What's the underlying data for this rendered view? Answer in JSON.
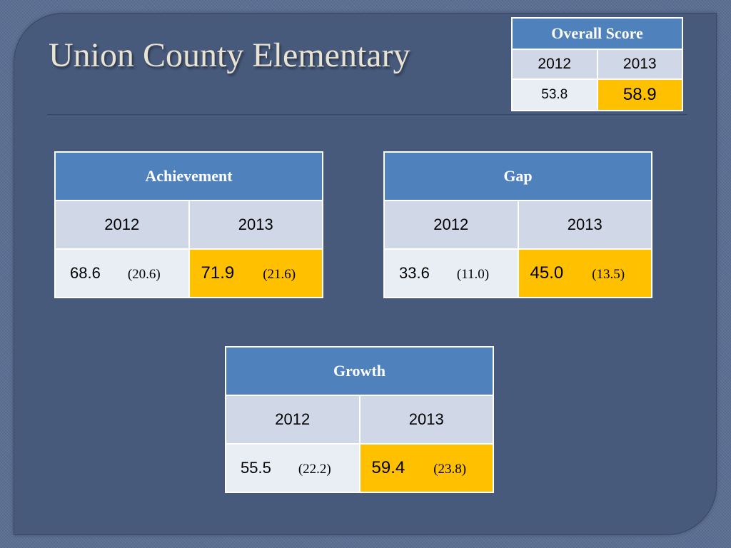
{
  "title": "Union County Elementary",
  "overall": {
    "header": "Overall Score",
    "years": [
      "2012",
      "2013"
    ],
    "values": [
      "53.8",
      "58.9"
    ]
  },
  "achievement": {
    "header": "Achievement",
    "years": [
      "2012",
      "2013"
    ],
    "values": [
      {
        "score": "68.6",
        "sub": "(20.6)"
      },
      {
        "score": "71.9",
        "sub": "(21.6)"
      }
    ]
  },
  "gap": {
    "header": "Gap",
    "years": [
      "2012",
      "2013"
    ],
    "values": [
      {
        "score": "33.6",
        "sub": "(11.0)"
      },
      {
        "score": "45.0",
        "sub": "(13.5)"
      }
    ]
  },
  "growth": {
    "header": "Growth",
    "years": [
      "2012",
      "2013"
    ],
    "values": [
      {
        "score": "55.5",
        "sub": "(22.2)"
      },
      {
        "score": "59.4",
        "sub": "(23.8)"
      }
    ]
  },
  "colors": {
    "header_blue": "#4f81bd",
    "highlight": "#ffc000",
    "year_row": "#d0d8e8",
    "value_row": "#e9edf4",
    "background": "#475a7c"
  }
}
